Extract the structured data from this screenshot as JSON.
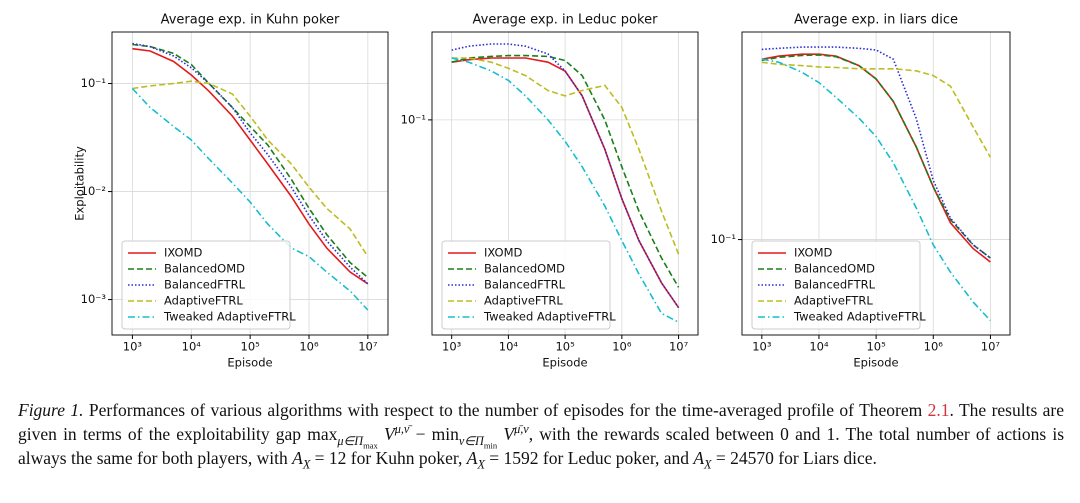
{
  "chart_data": [
    {
      "type": "line",
      "title": "Average exp. in Kuhn poker",
      "xlabel": "Episode",
      "ylabel": "Exploitability",
      "x": [
        1000,
        2000,
        5000,
        10000,
        20000,
        50000,
        100000,
        200000,
        500000,
        1000000,
        2000000,
        5000000,
        10000000
      ],
      "xscale": "log",
      "yscale": "log",
      "xlim": [
        450,
        22000000
      ],
      "ylim": [
        0.00047,
        0.3
      ],
      "xticks": [
        {
          "value": 1000,
          "label": "10³"
        },
        {
          "value": 10000,
          "label": "10⁴"
        },
        {
          "value": 100000,
          "label": "10⁵"
        },
        {
          "value": 1000000,
          "label": "10⁶"
        },
        {
          "value": 10000000,
          "label": "10⁷"
        }
      ],
      "yticks": [
        {
          "value": 0.001,
          "label": "10⁻³"
        },
        {
          "value": 0.01,
          "label": "10⁻²"
        },
        {
          "value": 0.1,
          "label": "10⁻¹"
        }
      ],
      "grid": true,
      "legend": "lower left",
      "series": [
        {
          "name": "IXOMD",
          "color": "#e41a1c",
          "dash": "solid",
          "values": [
            0.21,
            0.2,
            0.16,
            0.12,
            0.085,
            0.05,
            0.03,
            0.018,
            0.009,
            0.005,
            0.003,
            0.0018,
            0.0014
          ]
        },
        {
          "name": "BalancedOMD",
          "color": "#1a7f1a",
          "dash": "dashed",
          "values": [
            0.23,
            0.22,
            0.19,
            0.15,
            0.1,
            0.06,
            0.04,
            0.027,
            0.013,
            0.007,
            0.004,
            0.0022,
            0.0016
          ]
        },
        {
          "name": "BalancedFTRL",
          "color": "#2b2bd6",
          "dash": "dotted",
          "values": [
            0.235,
            0.22,
            0.18,
            0.14,
            0.1,
            0.06,
            0.035,
            0.022,
            0.011,
            0.006,
            0.0035,
            0.002,
            0.0014
          ]
        },
        {
          "name": "AdaptiveFTRL",
          "color": "#bcbd22",
          "dash": "dashed",
          "values": [
            0.09,
            0.095,
            0.1,
            0.105,
            0.1,
            0.08,
            0.05,
            0.03,
            0.018,
            0.011,
            0.007,
            0.0045,
            0.0025
          ]
        },
        {
          "name": "Tweaked AdaptiveFTRL",
          "color": "#17becf",
          "dash": "dashdot",
          "values": [
            0.09,
            0.06,
            0.04,
            0.03,
            0.02,
            0.012,
            0.008,
            0.005,
            0.003,
            0.0025,
            0.0018,
            0.0012,
            0.0008
          ]
        }
      ]
    },
    {
      "type": "line",
      "title": "Average exp. in Leduc poker",
      "xlabel": "Episode",
      "x": [
        1000,
        2000,
        5000,
        10000,
        20000,
        50000,
        100000,
        200000,
        500000,
        1000000,
        2000000,
        5000000,
        10000000
      ],
      "xscale": "log",
      "yscale": "log",
      "xlim": [
        450,
        22000000
      ],
      "ylim": [
        0.0195,
        0.195
      ],
      "xticks": [
        {
          "value": 1000,
          "label": "10³"
        },
        {
          "value": 10000,
          "label": "10⁴"
        },
        {
          "value": 100000,
          "label": "10⁵"
        },
        {
          "value": 1000000,
          "label": "10⁶"
        },
        {
          "value": 10000000,
          "label": "10⁷"
        }
      ],
      "yticks": [
        {
          "value": 0.1,
          "label": "10⁻¹"
        }
      ],
      "grid": true,
      "legend": "lower left",
      "series": [
        {
          "name": "IXOMD",
          "color": "#e41a1c",
          "dash": "solid",
          "values": [
            0.155,
            0.158,
            0.16,
            0.16,
            0.16,
            0.155,
            0.145,
            0.12,
            0.08,
            0.055,
            0.04,
            0.029,
            0.024
          ]
        },
        {
          "name": "BalancedOMD",
          "color": "#1a7f1a",
          "dash": "dashed",
          "values": [
            0.155,
            0.16,
            0.162,
            0.163,
            0.163,
            0.162,
            0.157,
            0.14,
            0.1,
            0.07,
            0.05,
            0.035,
            0.028
          ]
        },
        {
          "name": "BalancedFTRL",
          "color": "#2b2bd6",
          "dash": "dotted",
          "values": [
            0.17,
            0.175,
            0.178,
            0.178,
            0.175,
            0.165,
            0.145,
            0.12,
            0.08,
            0.055,
            0.04,
            0.029,
            0.024
          ]
        },
        {
          "name": "AdaptiveFTRL",
          "color": "#bcbd22",
          "dash": "dashed",
          "values": [
            0.16,
            0.16,
            0.155,
            0.148,
            0.14,
            0.125,
            0.12,
            0.125,
            0.13,
            0.11,
            0.08,
            0.05,
            0.036
          ]
        },
        {
          "name": "Tweaked AdaptiveFTRL",
          "color": "#17becf",
          "dash": "dashdot",
          "values": [
            0.16,
            0.155,
            0.145,
            0.135,
            0.12,
            0.1,
            0.085,
            0.07,
            0.052,
            0.04,
            0.031,
            0.023,
            0.0215
          ]
        }
      ]
    },
    {
      "type": "line",
      "title": "Average exp. in liars dice",
      "xlabel": "Episode",
      "x": [
        1000,
        2000,
        5000,
        10000,
        20000,
        50000,
        100000,
        200000,
        500000,
        1000000,
        2000000,
        5000000,
        10000000
      ],
      "xscale": "log",
      "yscale": "log",
      "xlim": [
        450,
        22000000
      ],
      "ylim": [
        0.058,
        0.327
      ],
      "xticks": [
        {
          "value": 1000,
          "label": "10³"
        },
        {
          "value": 10000,
          "label": "10⁴"
        },
        {
          "value": 100000,
          "label": "10⁵"
        },
        {
          "value": 1000000,
          "label": "10⁶"
        },
        {
          "value": 10000000,
          "label": "10⁷"
        }
      ],
      "yticks": [
        {
          "value": 0.1,
          "label": "10⁻¹"
        }
      ],
      "grid": true,
      "legend": "lower left",
      "series": [
        {
          "name": "IXOMD",
          "color": "#e41a1c",
          "dash": "solid",
          "values": [
            0.28,
            0.285,
            0.288,
            0.288,
            0.285,
            0.27,
            0.25,
            0.22,
            0.17,
            0.135,
            0.11,
            0.095,
            0.088
          ]
        },
        {
          "name": "BalancedOMD",
          "color": "#1a7f1a",
          "dash": "dashed",
          "values": [
            0.278,
            0.283,
            0.286,
            0.287,
            0.284,
            0.27,
            0.25,
            0.22,
            0.17,
            0.135,
            0.112,
            0.097,
            0.09
          ]
        },
        {
          "name": "BalancedFTRL",
          "color": "#2b2bd6",
          "dash": "dotted",
          "values": [
            0.296,
            0.298,
            0.3,
            0.3,
            0.3,
            0.298,
            0.295,
            0.28,
            0.2,
            0.14,
            0.113,
            0.097,
            0.09
          ]
        },
        {
          "name": "AdaptiveFTRL",
          "color": "#bcbd22",
          "dash": "dashed",
          "values": [
            0.275,
            0.272,
            0.27,
            0.268,
            0.267,
            0.265,
            0.265,
            0.265,
            0.262,
            0.255,
            0.24,
            0.19,
            0.16
          ]
        },
        {
          "name": "Tweaked AdaptiveFTRL",
          "color": "#17becf",
          "dash": "dashdot",
          "values": [
            0.28,
            0.275,
            0.26,
            0.245,
            0.225,
            0.2,
            0.18,
            0.155,
            0.12,
            0.097,
            0.083,
            0.07,
            0.063
          ]
        }
      ]
    }
  ],
  "caption": {
    "parts": [
      "Figure 1.",
      "Performances of various algorithms with respect to the number of episodes for the time-averaged profile of Theorem",
      "2.1",
      ". The results are given in terms of the exploitability gap",
      "max",
      "μ∈Π",
      "max",
      "V",
      "μ,ν̄",
      "− min",
      "ν∈Π",
      "min",
      "V",
      "μ̄,ν",
      ", with the rewards scaled between 0 and 1. The total number of actions is always the same for both players, with",
      "A",
      "X",
      "= 12 for Kuhn poker,",
      "A",
      "X",
      "= 1592 for Leduc poker, and",
      "A",
      "X",
      "= 24570 for Liars dice."
    ]
  }
}
